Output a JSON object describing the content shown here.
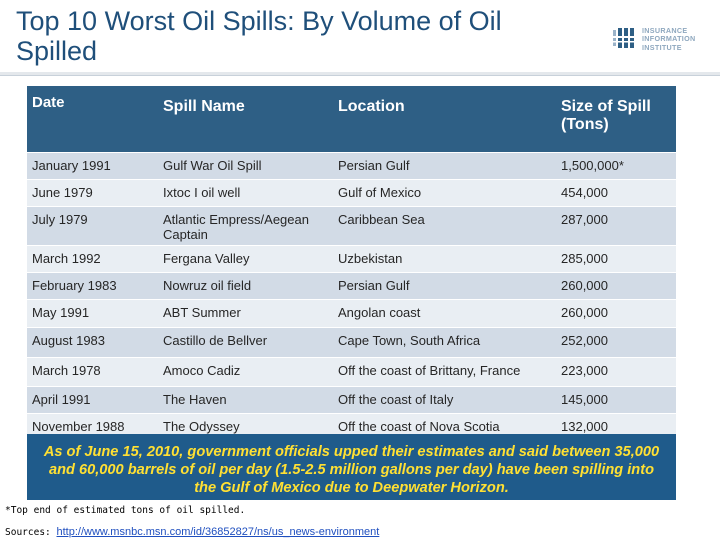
{
  "slide": {
    "title": "Top 10 Worst Oil Spills: By Volume of Oil Spilled",
    "logo_lines": [
      "INSURANCE",
      "INFORMATION",
      "INSTITUTE"
    ]
  },
  "table": {
    "headers": [
      "Date",
      "Spill Name",
      "Location",
      "Size of Spill (Tons)"
    ],
    "rows": [
      [
        "January 1991",
        "Gulf War Oil Spill",
        "Persian Gulf",
        "1,500,000*"
      ],
      [
        "June 1979",
        "Ixtoc I oil well",
        "Gulf of Mexico",
        "454,000"
      ],
      [
        "July 1979",
        "Atlantic Empress/Aegean Captain",
        "Caribbean Sea",
        "287,000"
      ],
      [
        "March 1992",
        "Fergana Valley",
        "Uzbekistan",
        "285,000"
      ],
      [
        "February 1983",
        "Nowruz oil field",
        "Persian Gulf",
        "260,000"
      ],
      [
        "May 1991",
        "ABT Summer",
        "Angolan coast",
        "260,000"
      ],
      [
        "August 1983",
        "Castillo de Bellver",
        "Cape Town, South Africa",
        "252,000"
      ],
      [
        "March 1978",
        "Amoco Cadiz",
        "Off the coast of Brittany, France",
        "223,000"
      ],
      [
        "April 1991",
        "The Haven",
        "Off the coast of Italy",
        "145,000"
      ],
      [
        "November 1988",
        "The Odyssey",
        "Off the coast of Nova Scotia",
        "132,000"
      ]
    ]
  },
  "note": "As of June 15, 2010, government officials upped their estimates and said between 35,000 and 60,000 barrels of oil per day (1.5-2.5 million gallons per day) have been spilling into the Gulf of Mexico due to Deepwater Horizon.",
  "footnote": "*Top end of estimated tons of oil spilled.",
  "sources": {
    "label": "Sources:",
    "link": "http://www.msnbc.msn.com/id/36852827/ns/us_news-environment"
  }
}
